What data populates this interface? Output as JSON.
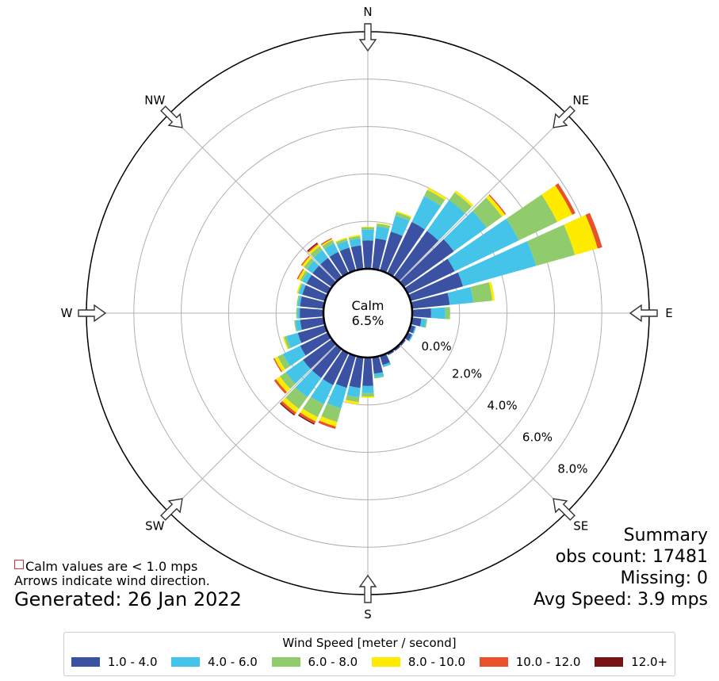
{
  "chart_data": {
    "type": "windrose",
    "title": "",
    "direction_labels": [
      "N",
      "NE",
      "E",
      "SE",
      "S",
      "SW",
      "W",
      "NW"
    ],
    "radial_tick_labels": [
      "0.0%",
      "2.0%",
      "4.0%",
      "6.0%",
      "8.0%"
    ],
    "calm": {
      "label": "Calm",
      "value": "6.5%"
    },
    "bin_labels": [
      "1.0 - 4.0",
      "4.0 - 6.0",
      "6.0 - 8.0",
      "8.0 - 10.0",
      "10.0 - 12.0",
      "12.0+"
    ],
    "bin_colors": [
      "#3b52a3",
      "#44c4e8",
      "#90cc6b",
      "#ffeb00",
      "#e8512a",
      "#7a1414"
    ],
    "directions_deg": [
      0,
      10,
      20,
      30,
      40,
      50,
      60,
      70,
      80,
      90,
      100,
      110,
      120,
      130,
      140,
      150,
      160,
      170,
      180,
      190,
      200,
      210,
      220,
      230,
      240,
      250,
      260,
      270,
      280,
      290,
      300,
      310,
      320,
      330,
      340,
      350
    ],
    "frequencies_pct": [
      [
        1.2,
        0.45,
        0.1,
        0.03,
        0,
        0
      ],
      [
        1.3,
        0.5,
        0.12,
        0.03,
        0,
        0
      ],
      [
        1.7,
        0.7,
        0.15,
        0.05,
        0,
        0
      ],
      [
        2.4,
        1.2,
        0.3,
        0.1,
        0,
        0
      ],
      [
        2.4,
        1.6,
        0.4,
        0.1,
        0,
        0
      ],
      [
        2.6,
        1.7,
        0.8,
        0.15,
        0.05,
        0
      ],
      [
        2.2,
        3.0,
        1.8,
        0.7,
        0.15,
        0
      ],
      [
        2.3,
        3.2,
        1.7,
        1.0,
        0.2,
        0
      ],
      [
        1.6,
        1.0,
        0.8,
        0.1,
        0,
        0
      ],
      [
        0.8,
        0.6,
        0.2,
        0,
        0,
        0
      ],
      [
        0.4,
        0.2,
        0.05,
        0,
        0,
        0
      ],
      [
        0.2,
        0.05,
        0,
        0,
        0,
        0
      ],
      [
        0.2,
        0.05,
        0,
        0,
        0,
        0
      ],
      [
        0.1,
        0,
        0,
        0,
        0,
        0
      ],
      [
        0.1,
        0,
        0,
        0,
        0,
        0
      ],
      [
        0.1,
        0,
        0,
        0,
        0,
        0
      ],
      [
        0.4,
        0.1,
        0,
        0,
        0,
        0
      ],
      [
        0.7,
        0.15,
        0.05,
        0,
        0,
        0
      ],
      [
        1.2,
        0.3,
        0.15,
        0.05,
        0,
        0
      ],
      [
        1.3,
        0.4,
        0.2,
        0.1,
        0,
        0
      ],
      [
        1.4,
        0.9,
        0.6,
        0.2,
        0.1,
        0
      ],
      [
        1.5,
        0.9,
        0.6,
        0.2,
        0.1,
        0.05
      ],
      [
        1.5,
        1.0,
        0.6,
        0.2,
        0.1,
        0.05
      ],
      [
        1.5,
        0.9,
        0.3,
        0.2,
        0.1,
        0
      ],
      [
        1.3,
        0.8,
        0.25,
        0.15,
        0.05,
        0
      ],
      [
        1.2,
        0.5,
        0.1,
        0.05,
        0,
        0
      ],
      [
        1.0,
        0.2,
        0.05,
        0,
        0,
        0
      ],
      [
        1.0,
        0.1,
        0.05,
        0,
        0,
        0
      ],
      [
        1.0,
        0.1,
        0.05,
        0,
        0,
        0
      ],
      [
        1.0,
        0.15,
        0.05,
        0.05,
        0,
        0
      ],
      [
        1.0,
        0.2,
        0.1,
        0.1,
        0.05,
        0
      ],
      [
        1.0,
        0.3,
        0.15,
        0.1,
        0.05,
        0
      ],
      [
        1.0,
        0.4,
        0.2,
        0.1,
        0.05,
        0.05
      ],
      [
        1.0,
        0.4,
        0.15,
        0.05,
        0.05,
        0
      ],
      [
        1.0,
        0.3,
        0.1,
        0.05,
        0,
        0
      ],
      [
        1.0,
        0.3,
        0.1,
        0.05,
        0,
        0
      ]
    ],
    "rlim": [
      0,
      10
    ]
  },
  "notes": {
    "line1": "Calm values are < 1.0 mps",
    "line2": "Arrows indicate wind direction.",
    "generated": "Generated: 26 Jan 2022"
  },
  "summary": {
    "title": "Summary",
    "obs_count": "obs count: 17481",
    "missing": "Missing: 0",
    "avg_speed": "Avg Speed: 3.9 mps"
  },
  "legend": {
    "title": "Wind Speed [meter / second]"
  }
}
